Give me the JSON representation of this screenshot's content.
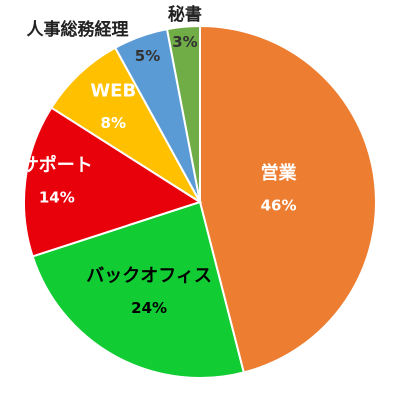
{
  "chart_data": {
    "type": "pie",
    "categories": [
      "営業",
      "バックオフィス",
      "サポート",
      "WEB",
      "人事総務経理",
      "秘書"
    ],
    "values": [
      46,
      24,
      14,
      8,
      5,
      3
    ],
    "value_labels": [
      "46%",
      "24%",
      "14%",
      "8%",
      "5%",
      "3%"
    ],
    "colors": [
      "#ed7d31",
      "#11cc33",
      "#e8000b",
      "#ffc000",
      "#5b9bd5",
      "#70ad47"
    ],
    "label_colors": [
      "#ffffff",
      "#000000",
      "#ffffff",
      "#ffffff",
      "#333333",
      "#333333"
    ]
  }
}
